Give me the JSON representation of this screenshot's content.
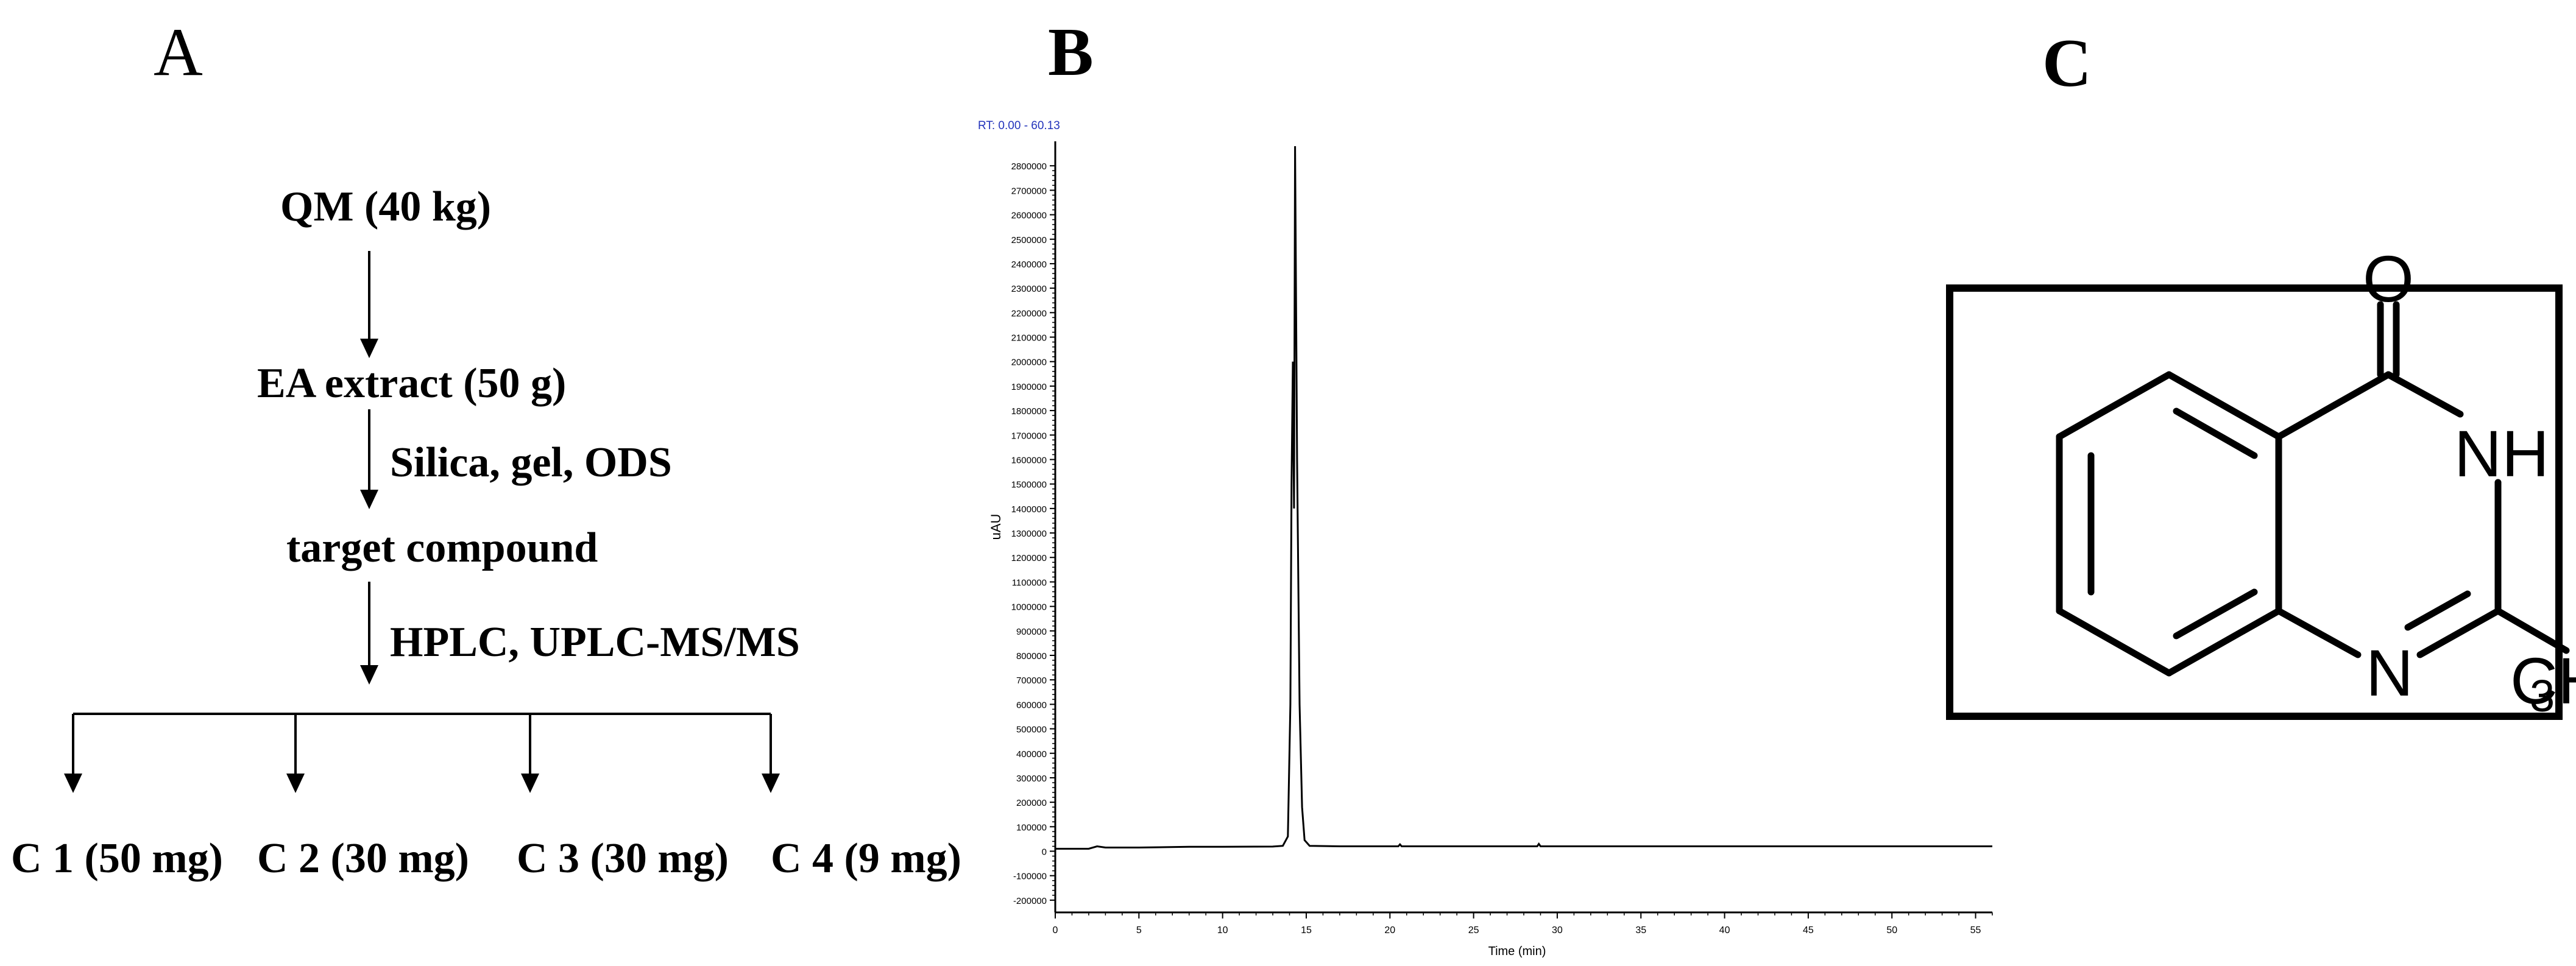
{
  "figure": {
    "panel_a": {
      "letter": "A",
      "nodes": {
        "start": "QM (40 kg)",
        "extract": "EA extract (50 g)",
        "target": "target compound"
      },
      "steps": {
        "separation": "Silica, gel, ODS",
        "analysis": "HPLC, UPLC-MS/MS"
      },
      "compounds": [
        "C 1 (50 mg)",
        "C 2 (30 mg)",
        "C 3 (30 mg)",
        "C 4 (9 mg)"
      ]
    },
    "panel_b": {
      "letter": "B",
      "rt_label": "RT: 0.00 - 60.13"
    },
    "panel_c": {
      "letter": "C",
      "atoms": {
        "oxygen": "O",
        "nh": "NH",
        "n": "N",
        "methyl_c": "CH",
        "methyl_sub": "3"
      }
    }
  },
  "chart_data": {
    "type": "line",
    "title": "",
    "xlabel": "Time (min)",
    "ylabel": "uAU",
    "xlim": [
      0,
      56
    ],
    "ylim": [
      -250000,
      2900000
    ],
    "x_ticks": [
      0,
      5,
      10,
      15,
      20,
      25,
      30,
      35,
      40,
      45,
      50,
      55
    ],
    "y_ticks": [
      -200000,
      -100000,
      0,
      100000,
      200000,
      300000,
      400000,
      500000,
      600000,
      700000,
      800000,
      900000,
      1000000,
      1100000,
      1200000,
      1300000,
      1400000,
      1500000,
      1600000,
      1700000,
      1800000,
      1900000,
      2000000,
      2100000,
      2200000,
      2300000,
      2400000,
      2500000,
      2600000,
      2700000,
      2800000
    ],
    "grid": false,
    "series": [
      {
        "color": "#000000",
        "points": [
          [
            0,
            10000
          ],
          [
            2.0,
            10000
          ],
          [
            2.5,
            20000
          ],
          [
            3.0,
            15000
          ],
          [
            5,
            15000
          ],
          [
            8,
            18000
          ],
          [
            10,
            18000
          ],
          [
            13.0,
            19000
          ],
          [
            13.6,
            22000
          ],
          [
            13.9,
            60000
          ],
          [
            14.05,
            600000
          ],
          [
            14.12,
            1500000
          ],
          [
            14.2,
            2000000
          ],
          [
            14.27,
            1400000
          ],
          [
            14.33,
            2880000
          ],
          [
            14.45,
            1600000
          ],
          [
            14.6,
            600000
          ],
          [
            14.75,
            180000
          ],
          [
            14.9,
            45000
          ],
          [
            15.2,
            22000
          ],
          [
            17,
            20000
          ],
          [
            20.5,
            20000
          ],
          [
            20.6,
            28000
          ],
          [
            20.7,
            20000
          ],
          [
            28.8,
            20000
          ],
          [
            28.9,
            30000
          ],
          [
            29.0,
            20000
          ],
          [
            40,
            20000
          ],
          [
            56,
            20000
          ]
        ]
      }
    ]
  }
}
